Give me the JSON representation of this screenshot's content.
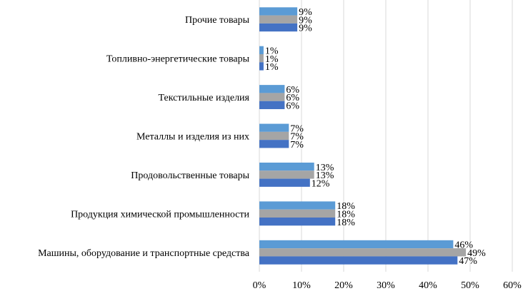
{
  "chart_data": {
    "type": "bar",
    "orientation": "horizontal",
    "categories": [
      "Машины, оборудование и транспортные средства",
      "Продукция химической промышленности",
      "Продовольственные товары",
      "Металлы и изделия из них",
      "Текстильные изделия",
      "Топливно-энергетические товары",
      "Прочие товары"
    ],
    "series": [
      {
        "color": "#5b9bd5",
        "values": [
          46,
          18,
          13,
          7,
          6,
          1,
          9
        ]
      },
      {
        "color": "#a5a5a5",
        "values": [
          49,
          18,
          13,
          7,
          6,
          1,
          9
        ]
      },
      {
        "color": "#4472c4",
        "values": [
          47,
          18,
          12,
          7,
          6,
          1,
          9
        ]
      }
    ],
    "value_suffix": "%",
    "xlim": [
      0,
      60
    ],
    "xticks": [
      "0%",
      "10%",
      "20%",
      "30%",
      "40%",
      "50%",
      "60%"
    ],
    "grid": true,
    "legend": "none"
  }
}
